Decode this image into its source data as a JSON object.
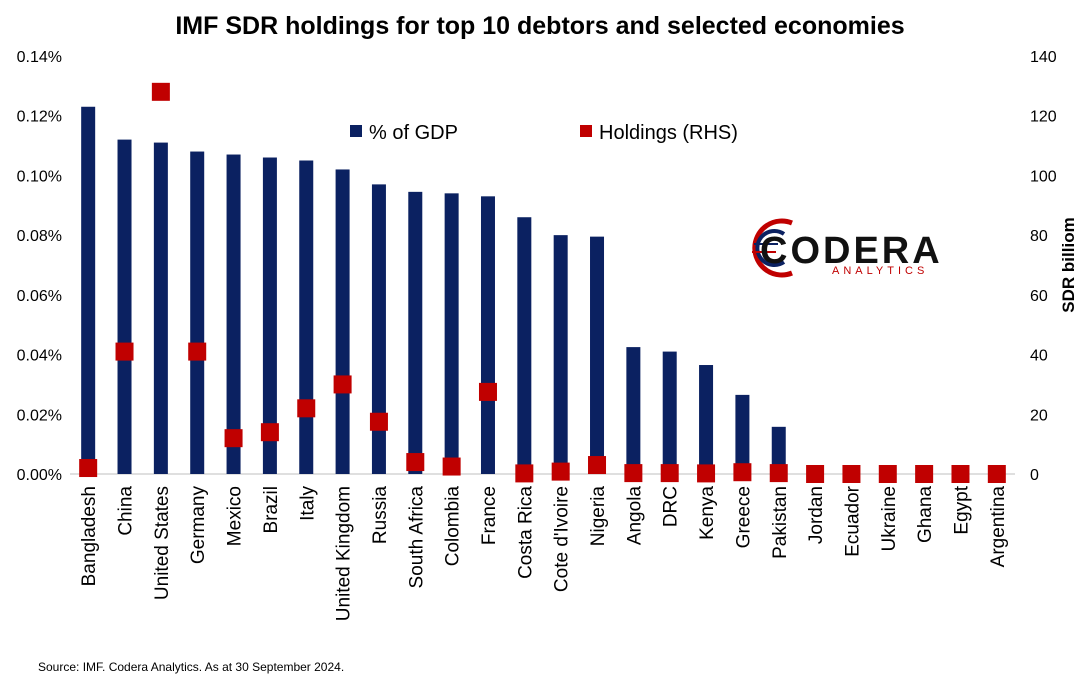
{
  "chart_data": {
    "type": "bar",
    "title": "IMF SDR holdings for top 10 debtors and selected economies",
    "categories": [
      "Bangladesh",
      "China",
      "United States",
      "Germany",
      "Mexico",
      "Brazil",
      "Italy",
      "United Kingdom",
      "Russia",
      "South Africa",
      "Colombia",
      "France",
      "Costa Rica",
      "Cote d'Ivoire",
      "Nigeria",
      "Angola",
      "DRC",
      "Kenya",
      "Greece",
      "Pakistan",
      "Jordan",
      "Ecuador",
      "Ukraine",
      "Ghana",
      "Egypt",
      "Argentina"
    ],
    "series": [
      {
        "name": "% of GDP",
        "axis": "left",
        "kind": "bar",
        "values": [
          0.123,
          0.112,
          0.111,
          0.108,
          0.107,
          0.106,
          0.105,
          0.102,
          0.097,
          0.0945,
          0.094,
          0.093,
          0.086,
          0.08,
          0.0795,
          0.0425,
          0.041,
          0.0365,
          0.0265,
          0.0158,
          0,
          0,
          0,
          0,
          0,
          0
        ]
      },
      {
        "name": "Holdings (RHS)",
        "axis": "right",
        "kind": "marker",
        "values": [
          2,
          41,
          128,
          41,
          12,
          14,
          22,
          30,
          17.5,
          4,
          2.5,
          27.5,
          0.2,
          0.8,
          3,
          0.3,
          0.3,
          0.2,
          0.6,
          0.3,
          0,
          0,
          0,
          0,
          0,
          0
        ]
      }
    ],
    "y_left": {
      "min": 0,
      "max": 0.14,
      "ticks": [
        0,
        0.02,
        0.04,
        0.06,
        0.08,
        0.1,
        0.12,
        0.14
      ],
      "tick_labels": [
        "0.00%",
        "0.02%",
        "0.04%",
        "0.06%",
        "0.08%",
        "0.10%",
        "0.12%",
        "0.14%"
      ]
    },
    "y_right": {
      "label": "SDR billiom",
      "min": 0,
      "max": 140,
      "ticks": [
        0,
        20,
        40,
        60,
        80,
        100,
        120,
        140
      ],
      "tick_labels": [
        "0",
        "20",
        "40",
        "60",
        "80",
        "100",
        "120",
        "140"
      ]
    },
    "legend_position": "top-center",
    "grid": false,
    "colors": {
      "bar": "#0b2161",
      "marker": "#c00000"
    }
  },
  "source_note": "Source: IMF. Codera Analytics. As at 30 September 2024.",
  "logo": {
    "name": "CODERA",
    "sub": "ANALYTICS"
  }
}
